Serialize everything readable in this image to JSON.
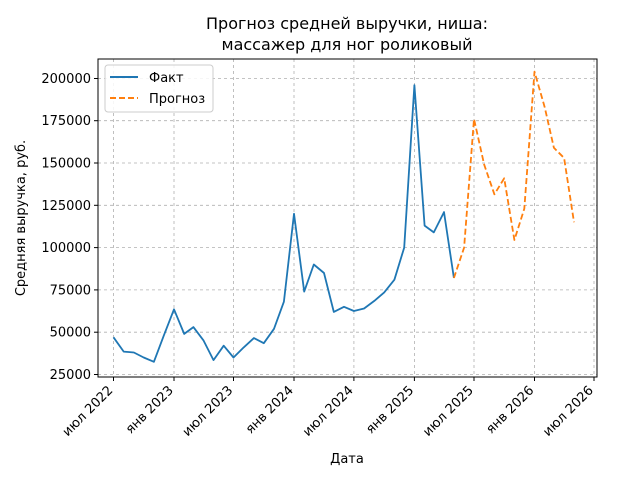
{
  "chart_data": {
    "type": "line",
    "title": [
      "Прогноз средней выручки, ниша:",
      "массажер для ног роликовый"
    ],
    "xlabel": "Дата",
    "ylabel": "Средняя выручка, руб.",
    "x_range": [
      "2022-05-15",
      "2026-07-10"
    ],
    "ylim": [
      23500,
      211500
    ],
    "grid": true,
    "legend_position": "top-left",
    "x_ticks": [
      {
        "date": "2022-07-01",
        "label": "июл 2022"
      },
      {
        "date": "2023-01-01",
        "label": "янв 2023"
      },
      {
        "date": "2023-07-01",
        "label": "июл 2023"
      },
      {
        "date": "2024-01-01",
        "label": "янв 2024"
      },
      {
        "date": "2024-07-01",
        "label": "июл 2024"
      },
      {
        "date": "2025-01-01",
        "label": "янв 2025"
      },
      {
        "date": "2025-07-01",
        "label": "июл 2025"
      },
      {
        "date": "2026-01-01",
        "label": "янв 2026"
      },
      {
        "date": "2026-07-01",
        "label": "июл 2026"
      }
    ],
    "y_ticks": [
      {
        "value": 25000,
        "label": "25000"
      },
      {
        "value": 50000,
        "label": "50000"
      },
      {
        "value": 75000,
        "label": "75000"
      },
      {
        "value": 100000,
        "label": "100000"
      },
      {
        "value": 125000,
        "label": "125000"
      },
      {
        "value": 150000,
        "label": "150000"
      },
      {
        "value": 175000,
        "label": "175000"
      },
      {
        "value": 200000,
        "label": "200000"
      }
    ],
    "series": [
      {
        "name": "Факт",
        "color": "#1f77b4",
        "dash": "solid",
        "points": [
          [
            "2022-07-01",
            47000
          ],
          [
            "2022-08-01",
            38500
          ],
          [
            "2022-09-01",
            38000
          ],
          [
            "2022-10-01",
            35000
          ],
          [
            "2022-11-01",
            32500
          ],
          [
            "2022-12-01",
            48000
          ],
          [
            "2023-01-01",
            63500
          ],
          [
            "2023-02-01",
            49000
          ],
          [
            "2023-03-01",
            53000
          ],
          [
            "2023-04-01",
            45000
          ],
          [
            "2023-05-01",
            33500
          ],
          [
            "2023-06-01",
            42000
          ],
          [
            "2023-07-01",
            35000
          ],
          [
            "2023-08-01",
            41000
          ],
          [
            "2023-09-01",
            46500
          ],
          [
            "2023-10-01",
            43500
          ],
          [
            "2023-11-01",
            52000
          ],
          [
            "2023-12-01",
            68000
          ],
          [
            "2024-01-01",
            120000
          ],
          [
            "2024-02-01",
            74000
          ],
          [
            "2024-03-01",
            90000
          ],
          [
            "2024-04-01",
            85000
          ],
          [
            "2024-05-01",
            62000
          ],
          [
            "2024-06-01",
            65000
          ],
          [
            "2024-07-01",
            62500
          ],
          [
            "2024-08-01",
            64000
          ],
          [
            "2024-09-01",
            68500
          ],
          [
            "2024-10-01",
            73500
          ],
          [
            "2024-11-01",
            81000
          ],
          [
            "2024-12-01",
            100000
          ],
          [
            "2025-01-01",
            196000
          ],
          [
            "2025-02-01",
            113000
          ],
          [
            "2025-03-01",
            109000
          ],
          [
            "2025-04-01",
            121000
          ],
          [
            "2025-05-01",
            82000
          ]
        ]
      },
      {
        "name": "Прогноз",
        "color": "#ff7f0e",
        "dash": "dashed",
        "points": [
          [
            "2025-05-01",
            82000
          ],
          [
            "2025-06-01",
            100000
          ],
          [
            "2025-07-01",
            176000
          ],
          [
            "2025-08-01",
            149000
          ],
          [
            "2025-09-01",
            131500
          ],
          [
            "2025-10-01",
            141000
          ],
          [
            "2025-11-01",
            104500
          ],
          [
            "2025-12-01",
            123000
          ],
          [
            "2026-01-01",
            204000
          ],
          [
            "2026-02-01",
            183000
          ],
          [
            "2026-03-01",
            159000
          ],
          [
            "2026-04-01",
            153000
          ],
          [
            "2026-05-01",
            115000
          ]
        ]
      }
    ]
  }
}
